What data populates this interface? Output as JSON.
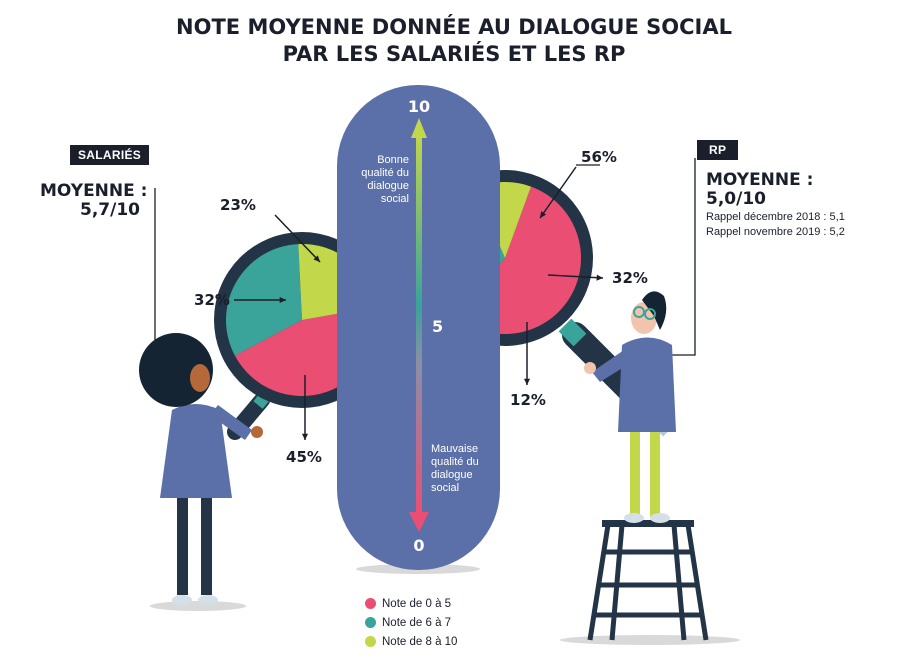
{
  "title": {
    "line1": "NOTE MOYENNE DONNÉE AU DIALOGUE SOCIAL",
    "line2": "PAR LES SALARIÉS ET LES RP"
  },
  "salaries": {
    "tag": "SALARIÉS",
    "avg_label": "MOYENNE :",
    "avg_value": "5,7/10"
  },
  "rp": {
    "tag": "RP",
    "avg_label": "MOYENNE :",
    "avg_value": "5,0/10",
    "recall_1": "Rappel décembre 2018 : 5,1",
    "recall_2": "Rappel novembre 2019 : 5,2"
  },
  "scale": {
    "top": "10",
    "mid": "5",
    "bottom": "0",
    "good_label": [
      "Bonne",
      "qualité du",
      "dialogue",
      "social"
    ],
    "bad_label": [
      "Mauvaise",
      "qualité du",
      "dialogue",
      "social"
    ]
  },
  "colors": {
    "low": "#ea4f73",
    "mid": "#3aa39a",
    "high": "#c3d74a",
    "pill": "#5b6fa8",
    "frame": "#223445"
  },
  "legend": [
    {
      "label": "Note de 0 à 5",
      "color": "#ea4f73"
    },
    {
      "label": "Note de 6 à 7",
      "color": "#3aa39a"
    },
    {
      "label": "Note de 8 à 10",
      "color": "#c3d74a"
    }
  ],
  "chart_data": [
    {
      "type": "pie",
      "title": "SALARIÉS",
      "categories": [
        "Note de 0 à 5",
        "Note de 6 à 7",
        "Note de 8 à 10"
      ],
      "values": [
        45,
        32,
        23
      ],
      "labels": [
        "45%",
        "32%",
        "23%"
      ]
    },
    {
      "type": "pie",
      "title": "RP",
      "categories": [
        "Note de 0 à 5",
        "Note de 6 à 7",
        "Note de 8 à 10"
      ],
      "values": [
        56,
        32,
        12
      ],
      "labels": [
        "56%",
        "32%",
        "12%"
      ]
    }
  ]
}
